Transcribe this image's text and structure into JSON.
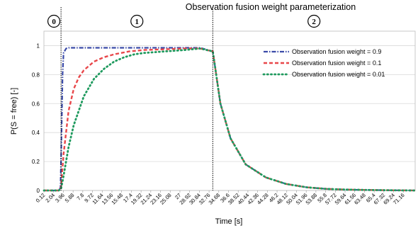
{
  "chart_data": {
    "type": "line",
    "title": "Observation fusion weight parameterization",
    "xlabel": "Time [s]",
    "ylabel": "P(S = free) [-]",
    "ylim": [
      0,
      1.1
    ],
    "xlim": [
      0.12,
      73.5
    ],
    "y_ticks": [
      "0",
      "0.2",
      "0.4",
      "0.6",
      "0.8",
      "1"
    ],
    "x_ticks": [
      "0.12",
      "2.04",
      "3.96",
      "5.88",
      "7.8",
      "9.72",
      "11.64",
      "13.56",
      "15.48",
      "17.4",
      "19.32",
      "21.24",
      "23.16",
      "25.08",
      "27",
      "28.92",
      "30.84",
      "32.76",
      "34.68",
      "36.6",
      "38.52",
      "40.44",
      "42.36",
      "44.28",
      "46.2",
      "48.12",
      "50.04",
      "51.96",
      "53.88",
      "55.8",
      "57.72",
      "59.64",
      "61.56",
      "63.48",
      "65.4",
      "67.32",
      "69.24",
      "71.16"
    ],
    "grid": true,
    "legend_position": "top-right",
    "phase_boundaries": [
      3.5,
      33.5
    ],
    "phase_labels": [
      "0",
      "1",
      "2"
    ],
    "series": [
      {
        "name": "Observation fusion weight = 0.9",
        "color": "#3a4aa8",
        "style": "dashdot",
        "x": [
          0.12,
          3.0,
          3.4,
          3.6,
          3.8,
          4.0,
          4.5,
          5,
          8,
          12,
          16,
          20,
          24,
          28,
          31,
          33.5,
          35,
          37,
          40,
          44,
          48,
          52,
          56,
          60,
          65,
          70,
          73.5
        ],
        "values": [
          0,
          0,
          0.02,
          0.4,
          0.8,
          0.95,
          0.98,
          0.985,
          0.985,
          0.985,
          0.985,
          0.985,
          0.985,
          0.985,
          0.985,
          0.96,
          0.6,
          0.36,
          0.18,
          0.09,
          0.045,
          0.022,
          0.011,
          0.006,
          0.003,
          0.001,
          0
        ]
      },
      {
        "name": "Observation fusion weight = 0.1",
        "color": "#e8474a",
        "style": "dashed",
        "x": [
          0.12,
          3.0,
          3.5,
          4.0,
          5,
          6,
          7,
          8,
          10,
          12,
          14,
          17,
          20,
          24,
          28,
          31,
          33.5,
          35,
          37,
          40,
          44,
          48,
          52,
          56,
          60,
          65,
          70,
          73.5
        ],
        "values": [
          0,
          0,
          0.02,
          0.25,
          0.55,
          0.7,
          0.78,
          0.83,
          0.89,
          0.92,
          0.94,
          0.96,
          0.97,
          0.975,
          0.98,
          0.98,
          0.96,
          0.6,
          0.36,
          0.18,
          0.09,
          0.045,
          0.022,
          0.011,
          0.006,
          0.003,
          0.001,
          0
        ]
      },
      {
        "name": "Observation fusion weight = 0.01",
        "color": "#1f9a5e",
        "style": "dotted",
        "x": [
          0.12,
          3.0,
          3.5,
          4.0,
          5,
          6,
          8,
          10,
          12,
          14,
          16,
          18,
          20,
          24,
          28,
          31,
          33.5,
          35,
          37,
          40,
          44,
          48,
          52,
          56,
          60,
          65,
          70,
          73.5
        ],
        "values": [
          0,
          0,
          0.01,
          0.1,
          0.3,
          0.45,
          0.65,
          0.77,
          0.84,
          0.89,
          0.92,
          0.94,
          0.95,
          0.96,
          0.97,
          0.98,
          0.96,
          0.6,
          0.36,
          0.18,
          0.09,
          0.045,
          0.022,
          0.011,
          0.006,
          0.003,
          0.001,
          0
        ]
      }
    ]
  }
}
